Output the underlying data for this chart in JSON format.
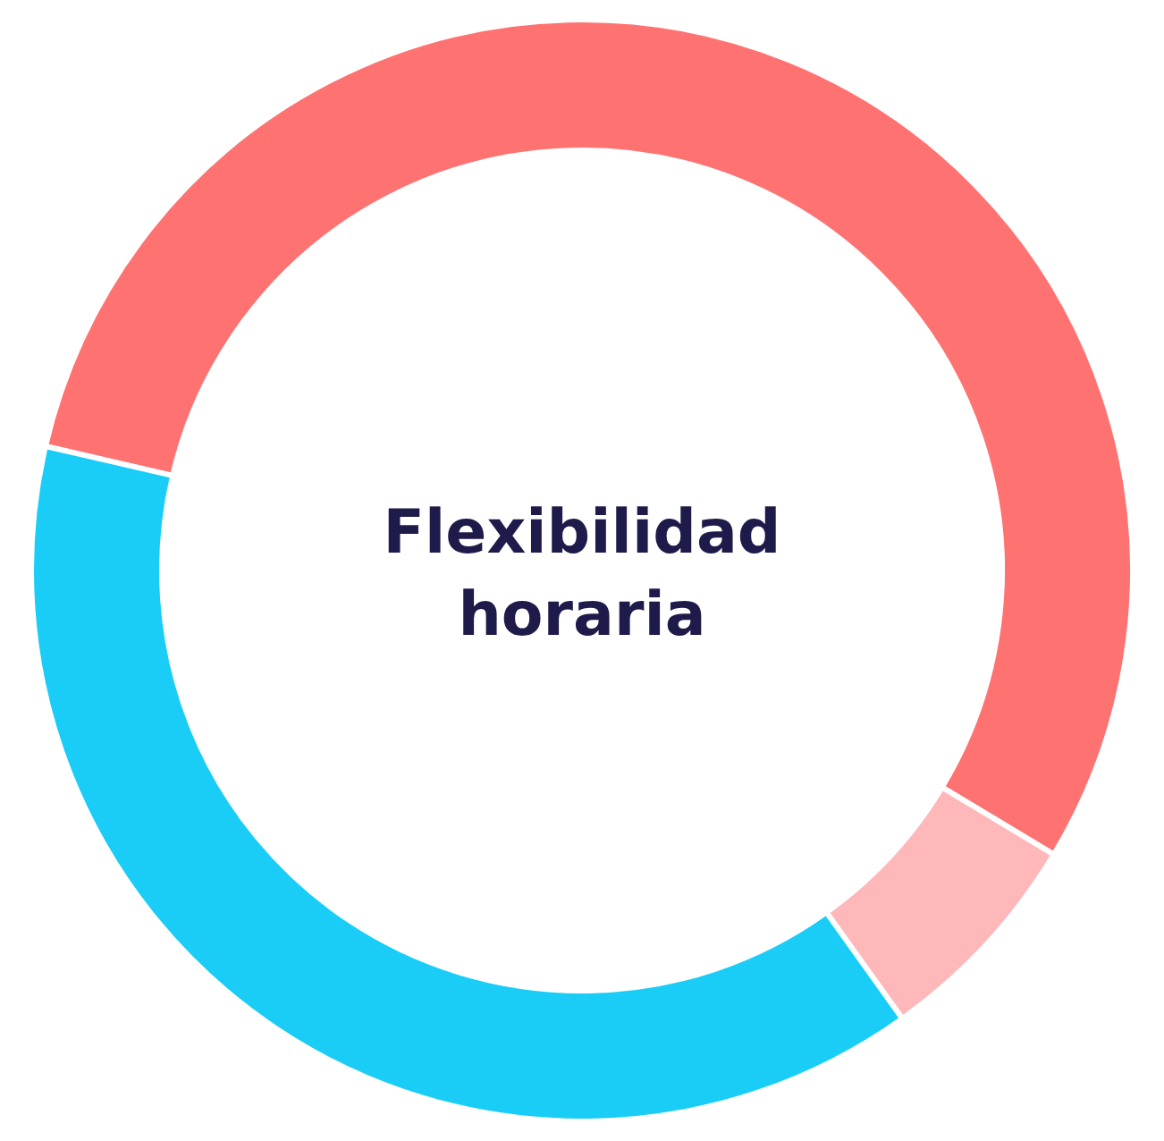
{
  "chart_data": {
    "type": "donut",
    "title": "Flexibilidad horaria",
    "categories": [
      null,
      null,
      null
    ],
    "values": [
      55,
      6.5,
      38.5
    ],
    "colors": [
      "#ff7272",
      "#ffb8ba",
      "#19cdf7"
    ],
    "legend": false
  }
}
